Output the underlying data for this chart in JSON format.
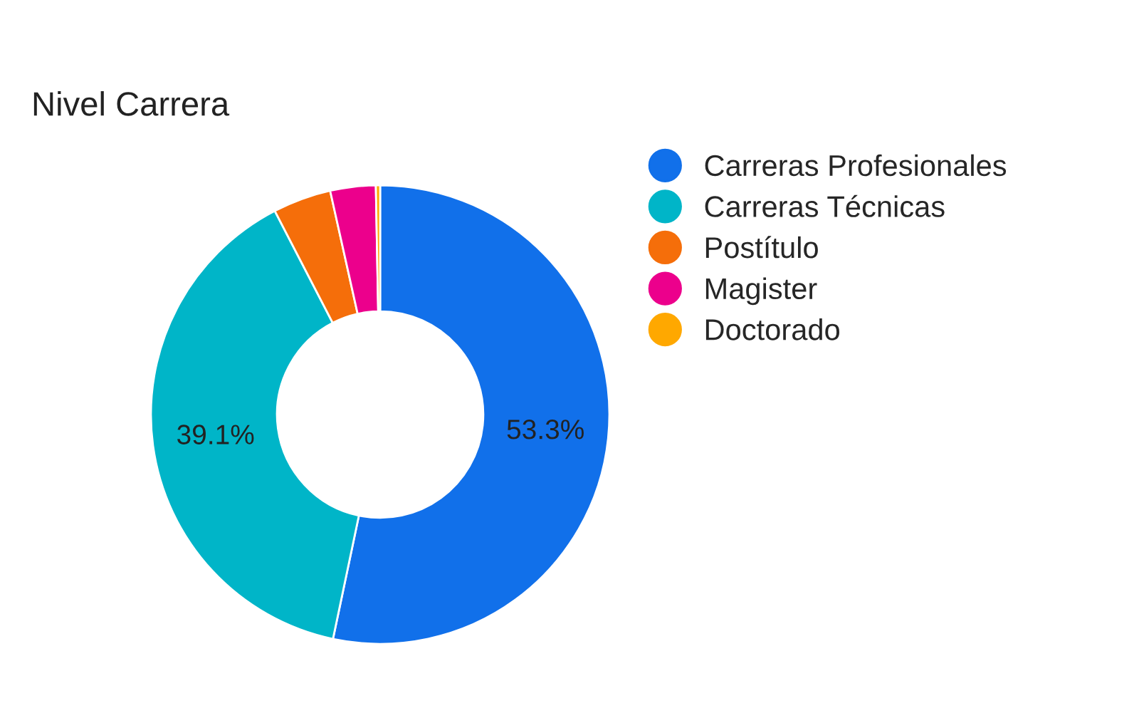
{
  "chart_data": {
    "type": "donut",
    "title": "Nivel Carrera",
    "categories": [
      "Carreras Profesionales",
      "Carreras Técnicas",
      "Postítulo",
      "Magister",
      "Doctorado"
    ],
    "values": [
      53.3,
      39.1,
      4.1,
      3.2,
      0.3
    ],
    "colors": [
      "#1170ea",
      "#00b5c8",
      "#f56e0a",
      "#ec008c",
      "#ffa800"
    ],
    "value_labels": [
      "53.3%",
      "39.1%",
      null,
      null,
      null
    ],
    "legend": "right"
  }
}
